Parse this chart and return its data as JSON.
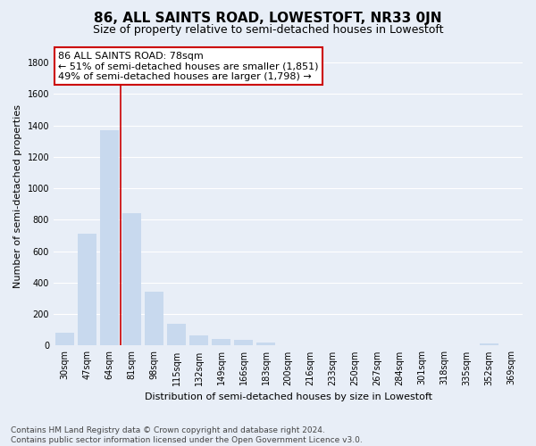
{
  "title": "86, ALL SAINTS ROAD, LOWESTOFT, NR33 0JN",
  "subtitle": "Size of property relative to semi-detached houses in Lowestoft",
  "xlabel": "Distribution of semi-detached houses by size in Lowestoft",
  "ylabel": "Number of semi-detached properties",
  "categories": [
    "30sqm",
    "47sqm",
    "64sqm",
    "81sqm",
    "98sqm",
    "115sqm",
    "132sqm",
    "149sqm",
    "166sqm",
    "183sqm",
    "200sqm",
    "216sqm",
    "233sqm",
    "250sqm",
    "267sqm",
    "284sqm",
    "301sqm",
    "318sqm",
    "335sqm",
    "352sqm",
    "369sqm"
  ],
  "values": [
    80,
    710,
    1370,
    840,
    340,
    140,
    65,
    42,
    35,
    18,
    5,
    2,
    1,
    1,
    1,
    0,
    0,
    0,
    0,
    12,
    0
  ],
  "bar_color": "#c8d9ee",
  "vline_x": 2.5,
  "vline_color": "#cc0000",
  "annotation_line1": "86 ALL SAINTS ROAD: 78sqm",
  "annotation_line2": "← 51% of semi-detached houses are smaller (1,851)",
  "annotation_line3": "49% of semi-detached houses are larger (1,798) →",
  "annotation_box_color": "#ffffff",
  "annotation_border_color": "#cc0000",
  "footnote": "Contains HM Land Registry data © Crown copyright and database right 2024.\nContains public sector information licensed under the Open Government Licence v3.0.",
  "ylim": [
    0,
    1900
  ],
  "yticks": [
    0,
    200,
    400,
    600,
    800,
    1000,
    1200,
    1400,
    1600,
    1800
  ],
  "background_color": "#e8eef7",
  "grid_color": "#ffffff",
  "title_fontsize": 11,
  "subtitle_fontsize": 9,
  "axis_label_fontsize": 8,
  "tick_fontsize": 7,
  "annotation_fontsize": 8,
  "footnote_fontsize": 6.5
}
